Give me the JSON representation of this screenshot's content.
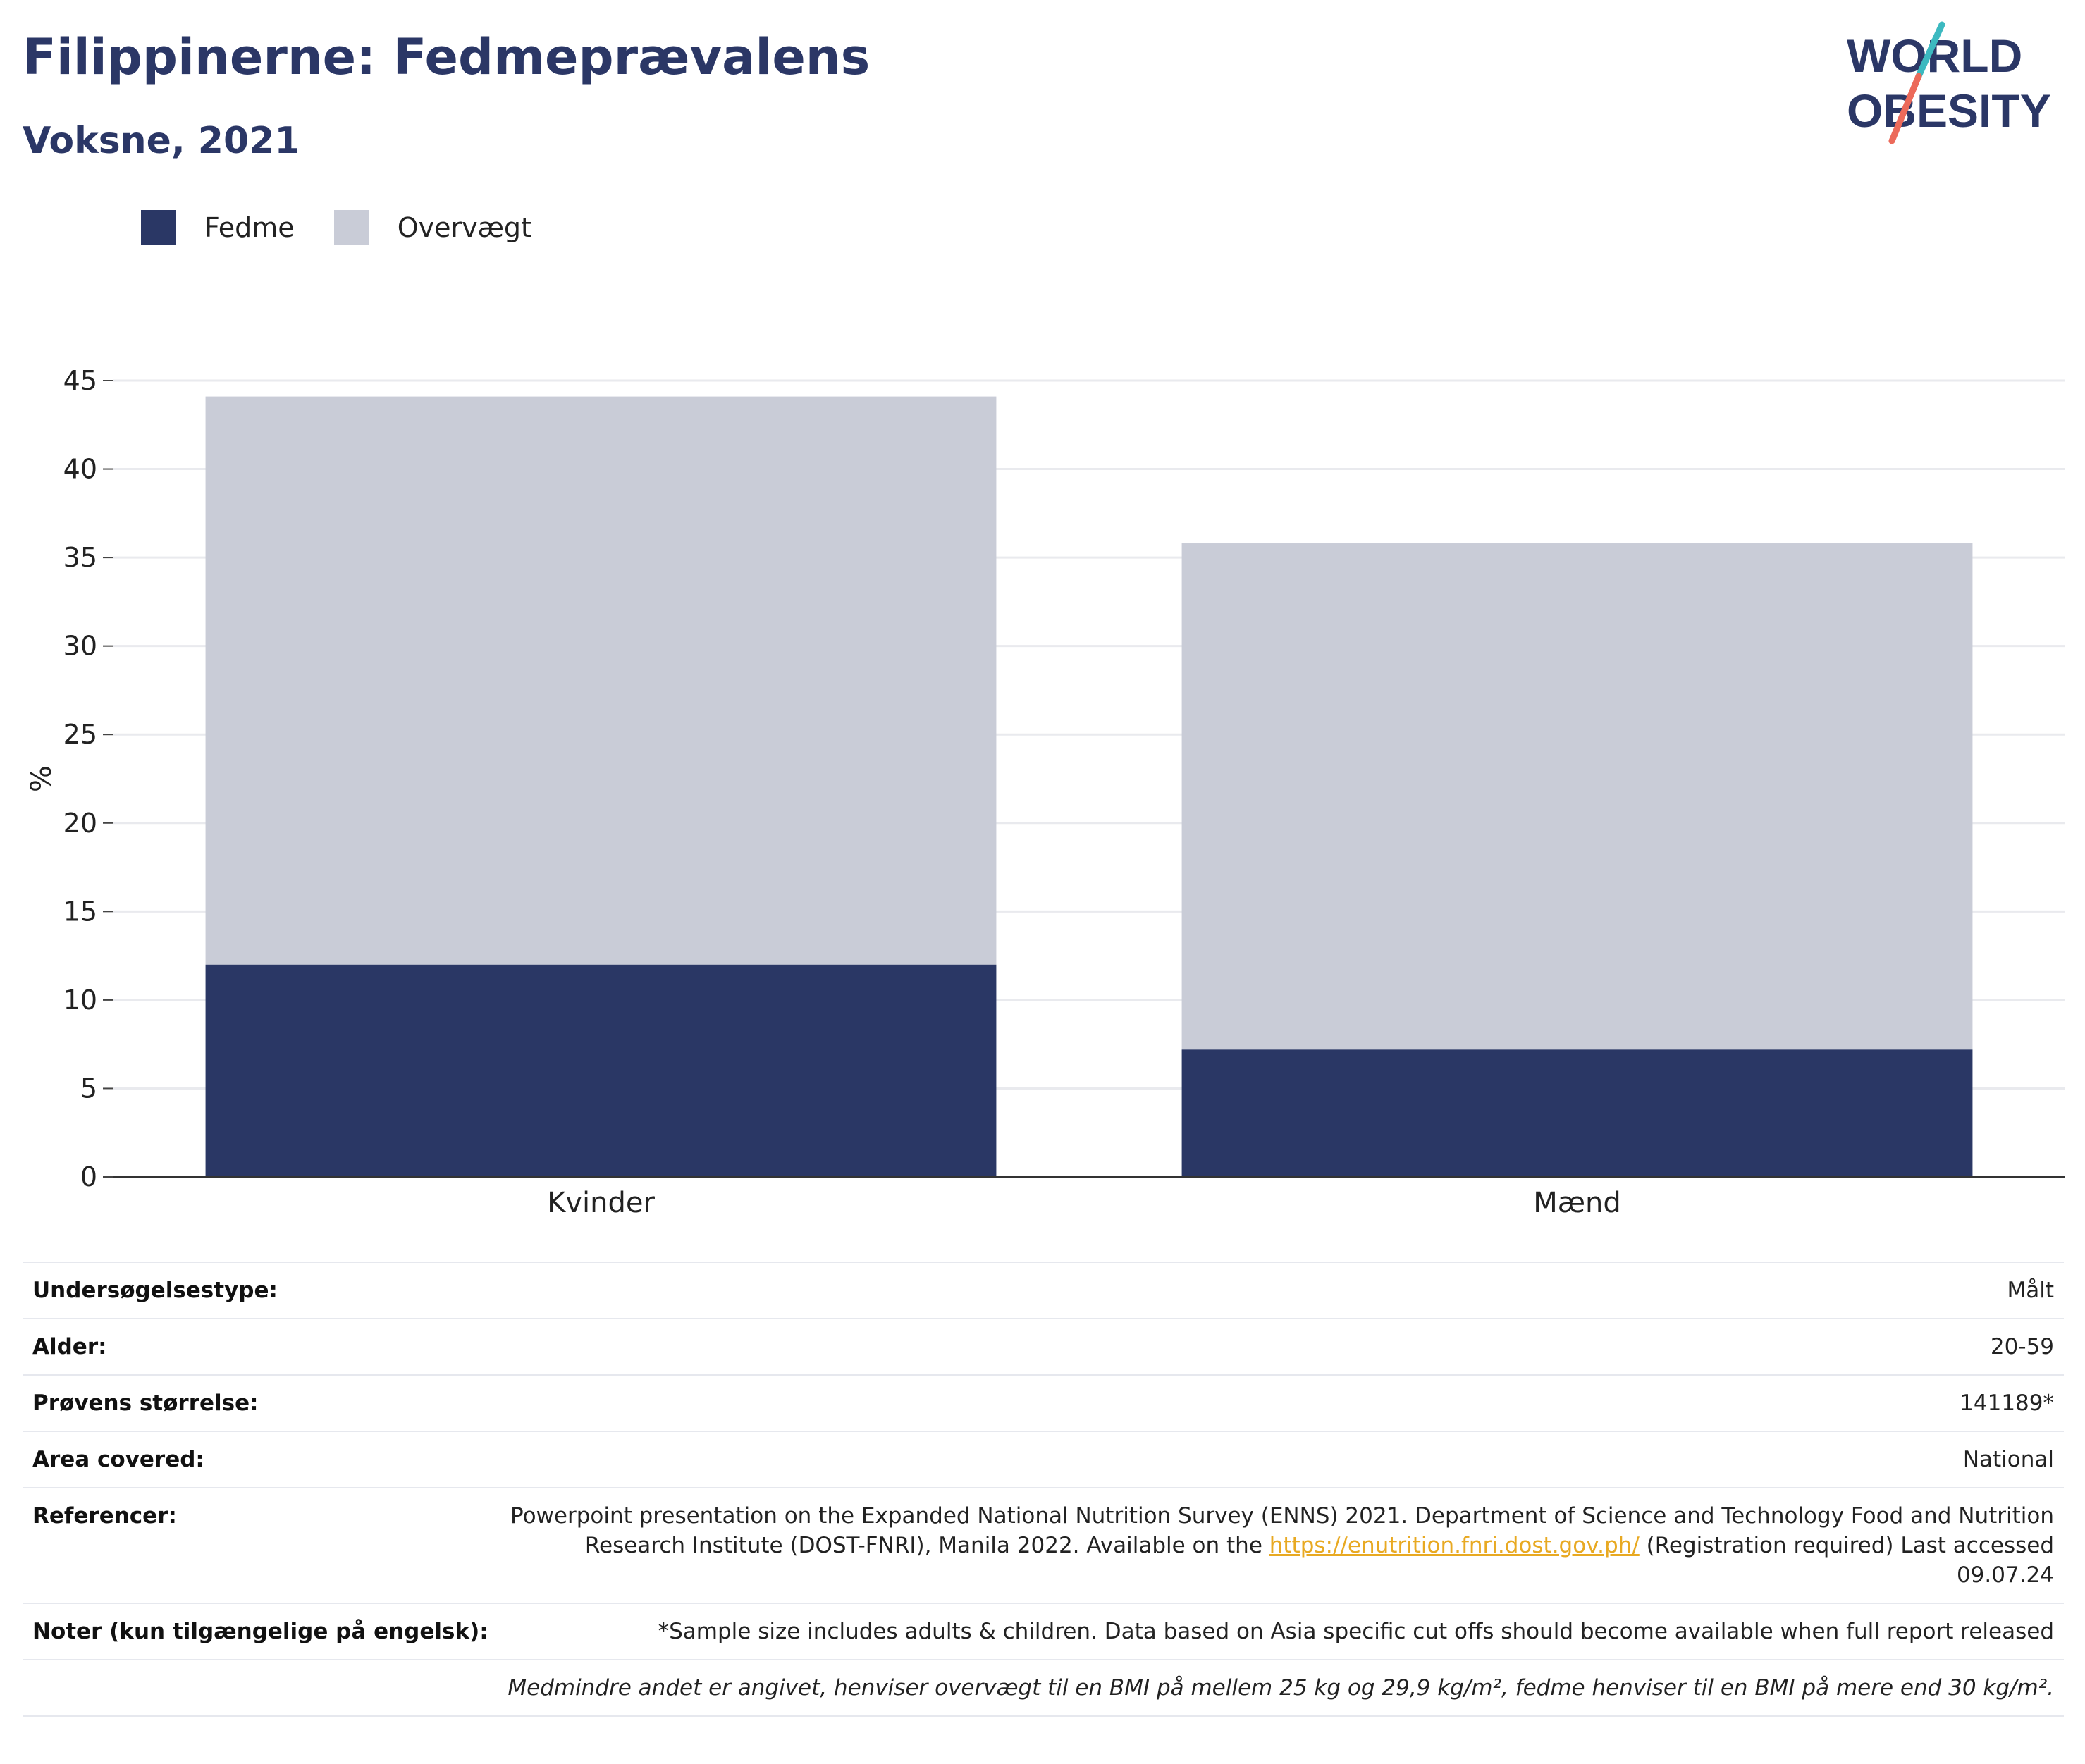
{
  "header": {
    "title": "Filippinerne: Fedmeprævalens",
    "subtitle": "Voksne, 2021"
  },
  "logo": {
    "line1": "WORLD",
    "line2": "OBESITY"
  },
  "legend": [
    {
      "label": "Fedme",
      "color": "#2a3765"
    },
    {
      "label": "Overvægt",
      "color": "#c9ccd7"
    }
  ],
  "chart_data": {
    "type": "bar",
    "stacked": true,
    "categories": [
      "Kvinder",
      "Mænd"
    ],
    "series": [
      {
        "name": "Fedme",
        "values": [
          12.0,
          7.2
        ],
        "color": "#2a3765"
      },
      {
        "name": "Overvægt",
        "values": [
          32.1,
          28.6
        ],
        "color": "#c9ccd7"
      }
    ],
    "xlabel": "",
    "ylabel": "%",
    "ylim": [
      0,
      45
    ],
    "yticks": [
      0,
      5,
      10,
      15,
      20,
      25,
      30,
      35,
      40,
      45
    ],
    "grid": true,
    "legend_position": "top-left"
  },
  "info": {
    "survey_type": {
      "label": "Undersøgelsestype:",
      "value": "Målt"
    },
    "age": {
      "label": "Alder:",
      "value": "20-59"
    },
    "sample_size": {
      "label": "Prøvens størrelse:",
      "value": "141189*"
    },
    "area": {
      "label": "Area covered:",
      "value": "National"
    },
    "references": {
      "label": "Referencer:",
      "text_before": "Powerpoint presentation on the Expanded National Nutrition Survey (ENNS) 2021. Department of Science and Technology Food and Nutrition Research Institute (DOST-FNRI), Manila 2022. Available on the ",
      "link": "https://enutrition.fnri.dost.gov.ph/",
      "text_after": " (Registration required) Last accessed 09.07.24"
    },
    "notes": {
      "label": "Noter (kun tilgængelige på engelsk):",
      "value": "*Sample size includes adults & children. Data based on Asia specific cut offs should become available when full report released"
    },
    "footnote": "Medmindre andet er angivet, henviser overvægt til en BMI på mellem 25 kg og 29,9 kg/m², fedme henviser til en BMI på mere end 30 kg/m²."
  }
}
